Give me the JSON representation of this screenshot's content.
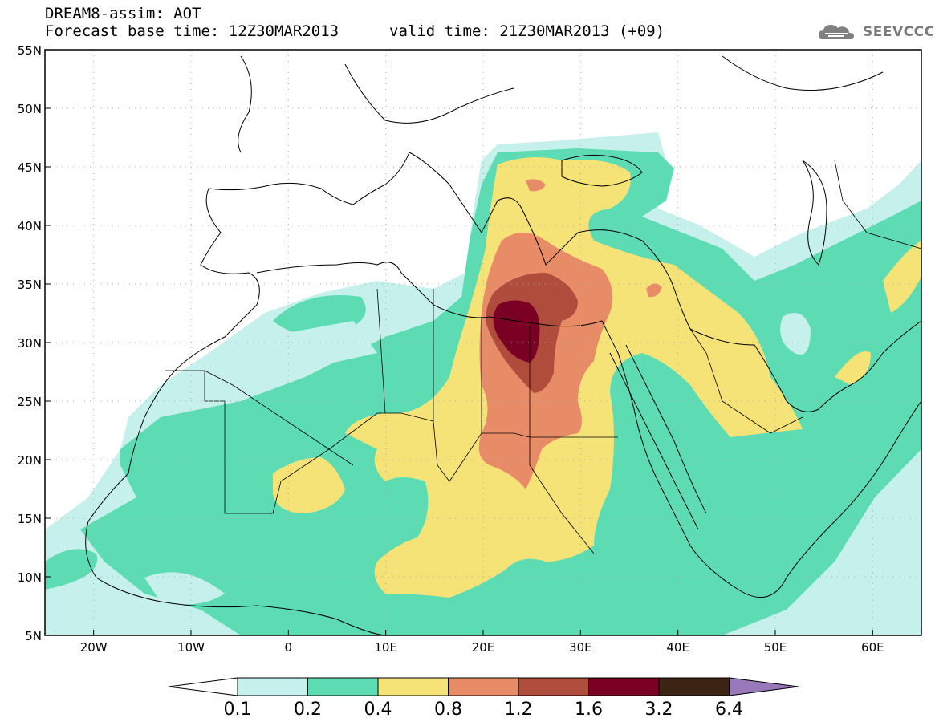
{
  "title": {
    "line1": "DREAM8-assim: AOT",
    "line2": "Forecast base time: 12Z30MAR2013",
    "valid": "valid time: 21Z30MAR2013 (+09)"
  },
  "logo": {
    "text": "SEEVCCC",
    "icon": "cloud-icon"
  },
  "axes": {
    "lat_labels": [
      "55N",
      "50N",
      "45N",
      "40N",
      "35N",
      "30N",
      "25N",
      "20N",
      "15N",
      "10N",
      "5N"
    ],
    "lon_labels": [
      "20W",
      "10W",
      "0",
      "10E",
      "20E",
      "30E",
      "40E",
      "50E",
      "60E"
    ],
    "lat_range": [
      5,
      55
    ],
    "lon_range": [
      -25,
      65
    ]
  },
  "legend": {
    "values": [
      "0.1",
      "0.2",
      "0.4",
      "0.8",
      "1.2",
      "1.6",
      "3.2",
      "6.4"
    ],
    "colors": [
      "#c5f0eb",
      "#5ddcb4",
      "#f5e378",
      "#e88c68",
      "#b04c3c",
      "#7a0024",
      "#3c2414",
      "#9878b8"
    ],
    "under_color": "#ffffff",
    "over_color": "#9878b8"
  }
}
